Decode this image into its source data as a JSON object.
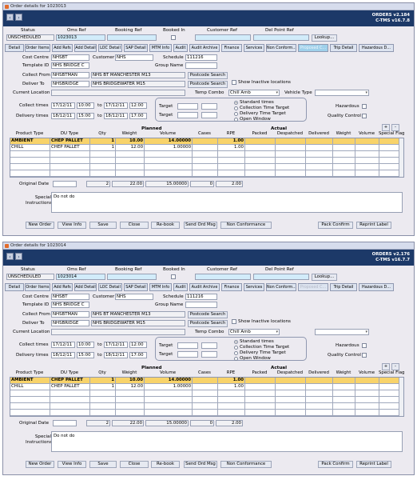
{
  "windows": [
    {
      "title": "Order details for 1023013",
      "app_name": "ORDERS v2.184",
      "app_version": "C-TMS v16.7.8",
      "header": {
        "status_label": "Status",
        "status_value": "UNSCHEDULED",
        "oms_ref_label": "Oms Ref",
        "oms_ref_value": "1023013",
        "booking_ref_label": "Booking Ref",
        "booking_ref_value": "",
        "booked_in_label": "Booked In",
        "customer_ref_label": "Customer Ref",
        "customer_ref_value": "",
        "del_point_ref_label": "Del Point Ref",
        "del_point_ref_value": "",
        "lookup_label": "Lookup..."
      },
      "tabs": [
        {
          "label": "Detail",
          "state": "normal"
        },
        {
          "label": "Order Items",
          "state": "normal"
        },
        {
          "label": "Add Refs",
          "state": "normal"
        },
        {
          "label": "Add Detail",
          "state": "normal"
        },
        {
          "label": "LOC Detail",
          "state": "normal"
        },
        {
          "label": "SAP Detail",
          "state": "normal"
        },
        {
          "label": "MTM Info",
          "state": "normal"
        },
        {
          "label": "Audit",
          "state": "normal"
        },
        {
          "label": "Audit Archive",
          "state": "normal"
        },
        {
          "label": "Finance",
          "state": "normal"
        },
        {
          "label": "Services",
          "state": "normal"
        },
        {
          "label": "Non Conform...",
          "state": "normal"
        },
        {
          "label": "Proposed C...",
          "state": "highlight"
        },
        {
          "label": "Trip Detail",
          "state": "normal"
        },
        {
          "label": "Hazardous D...",
          "state": "normal"
        }
      ],
      "detail": {
        "cost_centre_label": "Cost Centre",
        "cost_centre_value": "NHSBT",
        "customer_label": "Customer",
        "customer_value": "NHS",
        "schedule_label": "Schedule",
        "schedule_value": "111216",
        "template_id_label": "Template ID",
        "template_id_value": "NHS BRIDGE C",
        "group_name_label": "Group Name",
        "group_name_value": "",
        "collect_from_label": "Collect From",
        "collect_from_code": "NHSBTMAN",
        "collect_from_name": "NHS BT MANCHESTER M13",
        "deliver_to_label": "Deliver To",
        "deliver_to_code": "NHSBRIDGE",
        "deliver_to_name": "NHS BRIDGEWATER M15",
        "postcode_search_label": "Postcode Search",
        "show_inactive_label": "Show Inactive locations",
        "current_location_label": "Current Location",
        "temp_combo_label": "Temp Combo",
        "temp_combo_value": "Chill Amb",
        "vehicle_type_label": "Vehicle Type",
        "vehicle_type_value": "",
        "collect_times_label": "Collect times",
        "collect_from_date": "17/12/11",
        "collect_from_time": "10:00",
        "to_label": "to",
        "collect_to_date": "17/12/11",
        "collect_to_time": "12:00",
        "delivery_times_label": "Delivery times",
        "delivery_from_date": "18/12/11",
        "delivery_from_time": "15:00",
        "delivery_to_date": "18/12/11",
        "delivery_to_time": "17:00",
        "target_label": "Target",
        "radio_options": [
          "Standard times",
          "Collection Time Target",
          "Delivery Time Target",
          "Open Window"
        ],
        "hazardous_label": "Hazardous",
        "quality_control_label": "Quality Control"
      },
      "grid": {
        "planned_label": "Planned",
        "actual_label": "Actual",
        "columns": [
          "Product Type",
          "DU Type",
          "Qty",
          "Weight",
          "Volume",
          "Cases",
          "RPE",
          "Packed",
          "Despatched",
          "Delivered",
          "Weight",
          "Volume",
          "Special Flag"
        ],
        "rows": [
          [
            "AMBIENT",
            "CHEP PALLET",
            "1",
            "10.00",
            "14.00000",
            "",
            "1.00",
            "",
            "",
            "",
            "",
            "",
            ""
          ],
          [
            "CHILL",
            "CHEP PALLET",
            "1",
            "12.00",
            "1.00000",
            "",
            "1.00",
            "",
            "",
            "",
            "",
            "",
            ""
          ]
        ],
        "plus_label": "+",
        "minus_label": "-"
      },
      "totals": {
        "original_date_label": "Original Date",
        "qty": "2",
        "weight": "22.00",
        "volume": "15.00000",
        "cases": "0",
        "rpe": "2.00"
      },
      "special_instructions_label": "Special Instructions",
      "special_instructions_value": "Do not do",
      "footer_buttons": [
        "New Order",
        "View Info",
        "Save",
        "Close",
        "Re-book",
        "Send Ord Msg",
        "Non Conformance",
        "Pack Confirm",
        "Reprint Label"
      ]
    },
    {
      "title": "Order details for 1023014",
      "app_name": "ORDERS v2.176",
      "app_version": "C-TMS v16.7.7",
      "header": {
        "status_label": "Status",
        "status_value": "UNSCHEDULED",
        "oms_ref_label": "Oms Ref",
        "oms_ref_value": "1023014",
        "booking_ref_label": "Booking Ref",
        "booking_ref_value": "",
        "booked_in_label": "Booked In",
        "customer_ref_label": "Customer Ref",
        "customer_ref_value": "",
        "del_point_ref_label": "Del Point Ref",
        "del_point_ref_value": "",
        "lookup_label": "Lookup..."
      },
      "tabs": [
        {
          "label": "Detail",
          "state": "normal"
        },
        {
          "label": "Order Items",
          "state": "normal"
        },
        {
          "label": "Add Refs",
          "state": "normal"
        },
        {
          "label": "Add Detail",
          "state": "normal"
        },
        {
          "label": "LOC Detail",
          "state": "normal"
        },
        {
          "label": "SAP Detail",
          "state": "normal"
        },
        {
          "label": "MTM Info",
          "state": "normal"
        },
        {
          "label": "Audit",
          "state": "normal"
        },
        {
          "label": "Audit Archive",
          "state": "normal"
        },
        {
          "label": "Finance",
          "state": "normal"
        },
        {
          "label": "Services",
          "state": "normal"
        },
        {
          "label": "Non Conform...",
          "state": "normal"
        },
        {
          "label": "Proposed C...",
          "state": "grey"
        },
        {
          "label": "Trip Detail",
          "state": "normal"
        },
        {
          "label": "Hazardous D...",
          "state": "normal"
        }
      ],
      "detail": {
        "cost_centre_label": "Cost Centre",
        "cost_centre_value": "NHSBT",
        "customer_label": "Customer",
        "customer_value": "NHS",
        "schedule_label": "Schedule",
        "schedule_value": "111216",
        "template_id_label": "Template ID",
        "template_id_value": "NHS BRIDGE C",
        "group_name_label": "Group Name",
        "group_name_value": "",
        "collect_from_label": "Collect From",
        "collect_from_code": "NHSBTMAN",
        "collect_from_name": "NHS BT MANCHESTER M13",
        "deliver_to_label": "Deliver To",
        "deliver_to_code": "NHSBRIDGE",
        "deliver_to_name": "NHS BRIDGEWATER M15",
        "postcode_search_label": "Postcode Search",
        "show_inactive_label": "Show Inactive locations",
        "current_location_label": "Current Location",
        "temp_combo_label": "Temp Combo",
        "temp_combo_value": "Chill Amb",
        "vehicle_type_label": "",
        "vehicle_type_value": "",
        "collect_times_label": "Collect times",
        "collect_from_date": "17/12/11",
        "collect_from_time": "10:00",
        "to_label": "to",
        "collect_to_date": "17/12/11",
        "collect_to_time": "12:00",
        "delivery_times_label": "Delivery times",
        "delivery_from_date": "18/12/11",
        "delivery_from_time": "15:00",
        "delivery_to_date": "18/12/11",
        "delivery_to_time": "17:00",
        "target_label": "Target",
        "radio_options": [
          "Standard times",
          "Collection Time Target",
          "Delivery Time Target",
          "Open Window"
        ],
        "hazardous_label": "Hazardous",
        "quality_control_label": "Quality Control"
      },
      "grid": {
        "planned_label": "Planned",
        "actual_label": "Actual",
        "columns": [
          "Product Type",
          "DU Type",
          "Qty",
          "Weight",
          "Volume",
          "Cases",
          "RPE",
          "Packed",
          "Despatched",
          "Delivered",
          "Weight",
          "Volume",
          "Special Flag"
        ],
        "rows": [
          [
            "AMBIENT",
            "CHEP PALLET",
            "1",
            "10.00",
            "14.00000",
            "",
            "1.00",
            "",
            "",
            "",
            "",
            "",
            ""
          ],
          [
            "CHILL",
            "CHEP PALLET",
            "1",
            "12.00",
            "1.00000",
            "",
            "1.00",
            "",
            "",
            "",
            "",
            "",
            ""
          ]
        ],
        "plus_label": "+",
        "minus_label": "-"
      },
      "totals": {
        "original_date_label": "Original Date",
        "qty": "2",
        "weight": "22.00",
        "volume": "15.00000",
        "cases": "0",
        "rpe": "2.00"
      },
      "special_instructions_label": "Special Instructions",
      "special_instructions_value": "Do not do",
      "footer_buttons": [
        "New Order",
        "View Info",
        "Save",
        "Close",
        "Re-book",
        "Send Ord Msg",
        "Non Conformance",
        "Pack Confirm",
        "Reprint Label"
      ]
    }
  ]
}
